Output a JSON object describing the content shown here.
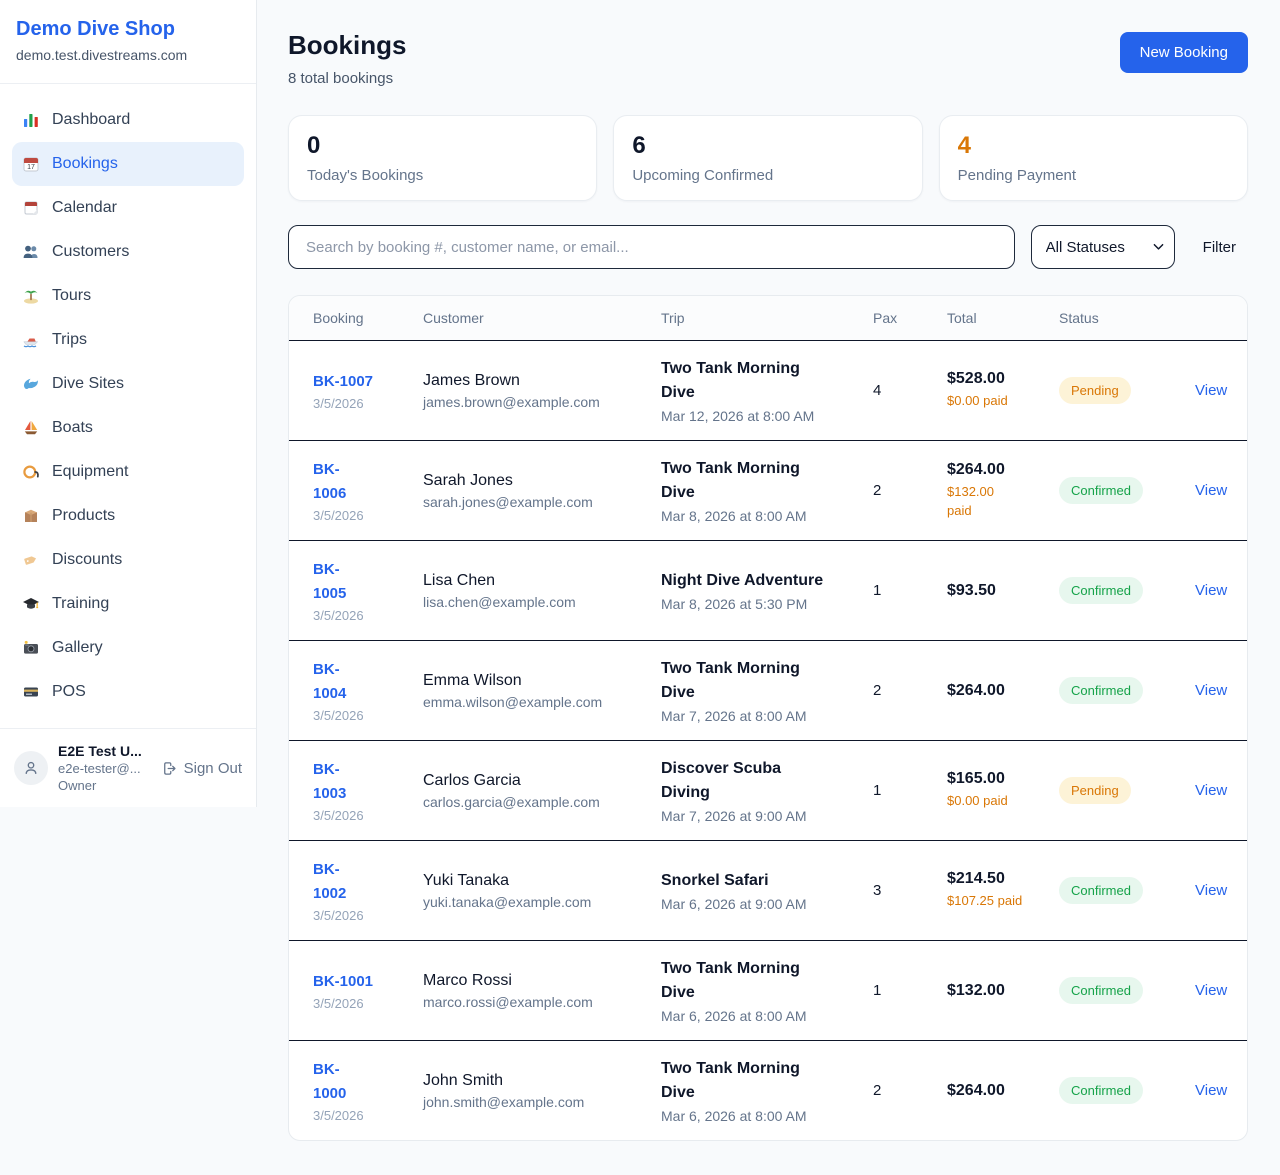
{
  "sidebar": {
    "shop_name": "Demo Dive Shop",
    "shop_domain": "demo.test.divestreams.com",
    "items": [
      {
        "label": "Dashboard",
        "icon": "bar-chart-icon",
        "active": false
      },
      {
        "label": "Bookings",
        "icon": "bookings-calendar-icon",
        "active": true
      },
      {
        "label": "Calendar",
        "icon": "tear-calendar-icon",
        "active": false
      },
      {
        "label": "Customers",
        "icon": "people-icon",
        "active": false
      },
      {
        "label": "Tours",
        "icon": "island-icon",
        "active": false
      },
      {
        "label": "Trips",
        "icon": "speedboat-icon",
        "active": false
      },
      {
        "label": "Dive Sites",
        "icon": "wave-icon",
        "active": false
      },
      {
        "label": "Boats",
        "icon": "sailboat-icon",
        "active": false
      },
      {
        "label": "Equipment",
        "icon": "diving-mask-icon",
        "active": false
      },
      {
        "label": "Products",
        "icon": "package-icon",
        "active": false
      },
      {
        "label": "Discounts",
        "icon": "tag-icon",
        "active": false
      },
      {
        "label": "Training",
        "icon": "graduation-cap-icon",
        "active": false
      },
      {
        "label": "Gallery",
        "icon": "camera-icon",
        "active": false
      },
      {
        "label": "POS",
        "icon": "credit-card-icon",
        "active": false
      }
    ],
    "user": {
      "name": "E2E Test U...",
      "email": "e2e-tester@...",
      "role": "Owner",
      "sign_out_label": "Sign Out"
    }
  },
  "header": {
    "title": "Bookings",
    "subtitle": "8 total bookings",
    "new_booking_label": "New Booking"
  },
  "stats": [
    {
      "value": "0",
      "label": "Today's Bookings",
      "accent": "dark"
    },
    {
      "value": "6",
      "label": "Upcoming Confirmed",
      "accent": "dark"
    },
    {
      "value": "4",
      "label": "Pending Payment",
      "accent": "orange"
    }
  ],
  "filters": {
    "search_placeholder": "Search by booking #, customer name, or email...",
    "status_selected": "All Statuses",
    "filter_label": "Filter"
  },
  "table": {
    "columns": [
      "Booking",
      "Customer",
      "Trip",
      "Pax",
      "Total",
      "Status"
    ],
    "rows": [
      {
        "id": "BK-1007",
        "id_wrap": false,
        "date": "3/5/2026",
        "customer": "James Brown",
        "email": "james.brown@example.com",
        "trip": "Two Tank Morning Dive",
        "trip_date": "Mar 12, 2026 at 8:00 AM",
        "pax": "4",
        "total": "$528.00",
        "paid": "$0.00 paid",
        "paid_wrap": false,
        "status": "Pending",
        "view_label": "View"
      },
      {
        "id": "BK-1006",
        "id_wrap": true,
        "date": "3/5/2026",
        "customer": "Sarah Jones",
        "email": "sarah.jones@example.com",
        "trip": "Two Tank Morning Dive",
        "trip_date": "Mar 8, 2026 at 8:00 AM",
        "pax": "2",
        "total": "$264.00",
        "paid": "$132.00 paid",
        "paid_wrap": true,
        "status": "Confirmed",
        "view_label": "View"
      },
      {
        "id": "BK-1005",
        "id_wrap": true,
        "date": "3/5/2026",
        "customer": "Lisa Chen",
        "email": "lisa.chen@example.com",
        "trip": "Night Dive Adventure",
        "trip_date": "Mar 8, 2026 at 5:30 PM",
        "pax": "1",
        "total": "$93.50",
        "paid": "",
        "paid_wrap": false,
        "status": "Confirmed",
        "view_label": "View"
      },
      {
        "id": "BK-1004",
        "id_wrap": true,
        "date": "3/5/2026",
        "customer": "Emma Wilson",
        "email": "emma.wilson@example.com",
        "trip": "Two Tank Morning Dive",
        "trip_date": "Mar 7, 2026 at 8:00 AM",
        "pax": "2",
        "total": "$264.00",
        "paid": "",
        "paid_wrap": false,
        "status": "Confirmed",
        "view_label": "View"
      },
      {
        "id": "BK-1003",
        "id_wrap": true,
        "date": "3/5/2026",
        "customer": "Carlos Garcia",
        "email": "carlos.garcia@example.com",
        "trip": "Discover Scuba Diving",
        "trip_date": "Mar 7, 2026 at 9:00 AM",
        "pax": "1",
        "total": "$165.00",
        "paid": "$0.00 paid",
        "paid_wrap": false,
        "status": "Pending",
        "view_label": "View"
      },
      {
        "id": "BK-1002",
        "id_wrap": true,
        "date": "3/5/2026",
        "customer": "Yuki Tanaka",
        "email": "yuki.tanaka@example.com",
        "trip": "Snorkel Safari",
        "trip_date": "Mar 6, 2026 at 9:00 AM",
        "pax": "3",
        "total": "$214.50",
        "paid": "$107.25 paid",
        "paid_wrap": false,
        "status": "Confirmed",
        "view_label": "View"
      },
      {
        "id": "BK-1001",
        "id_wrap": false,
        "date": "3/5/2026",
        "customer": "Marco Rossi",
        "email": "marco.rossi@example.com",
        "trip": "Two Tank Morning Dive",
        "trip_date": "Mar 6, 2026 at 8:00 AM",
        "pax": "1",
        "total": "$132.00",
        "paid": "",
        "paid_wrap": false,
        "status": "Confirmed",
        "view_label": "View"
      },
      {
        "id": "BK-1000",
        "id_wrap": true,
        "date": "3/5/2026",
        "customer": "John Smith",
        "email": "john.smith@example.com",
        "trip": "Two Tank Morning Dive",
        "trip_date": "Mar 6, 2026 at 8:00 AM",
        "pax": "2",
        "total": "$264.00",
        "paid": "",
        "paid_wrap": false,
        "status": "Confirmed",
        "view_label": "View"
      }
    ]
  },
  "colors": {
    "accent_blue": "#2563eb",
    "pending_text": "#d97706",
    "pending_bg": "#fdf3d7",
    "confirmed_text": "#16a34a",
    "confirmed_bg": "#e7f7ee",
    "page_bg": "#f8fafc"
  }
}
